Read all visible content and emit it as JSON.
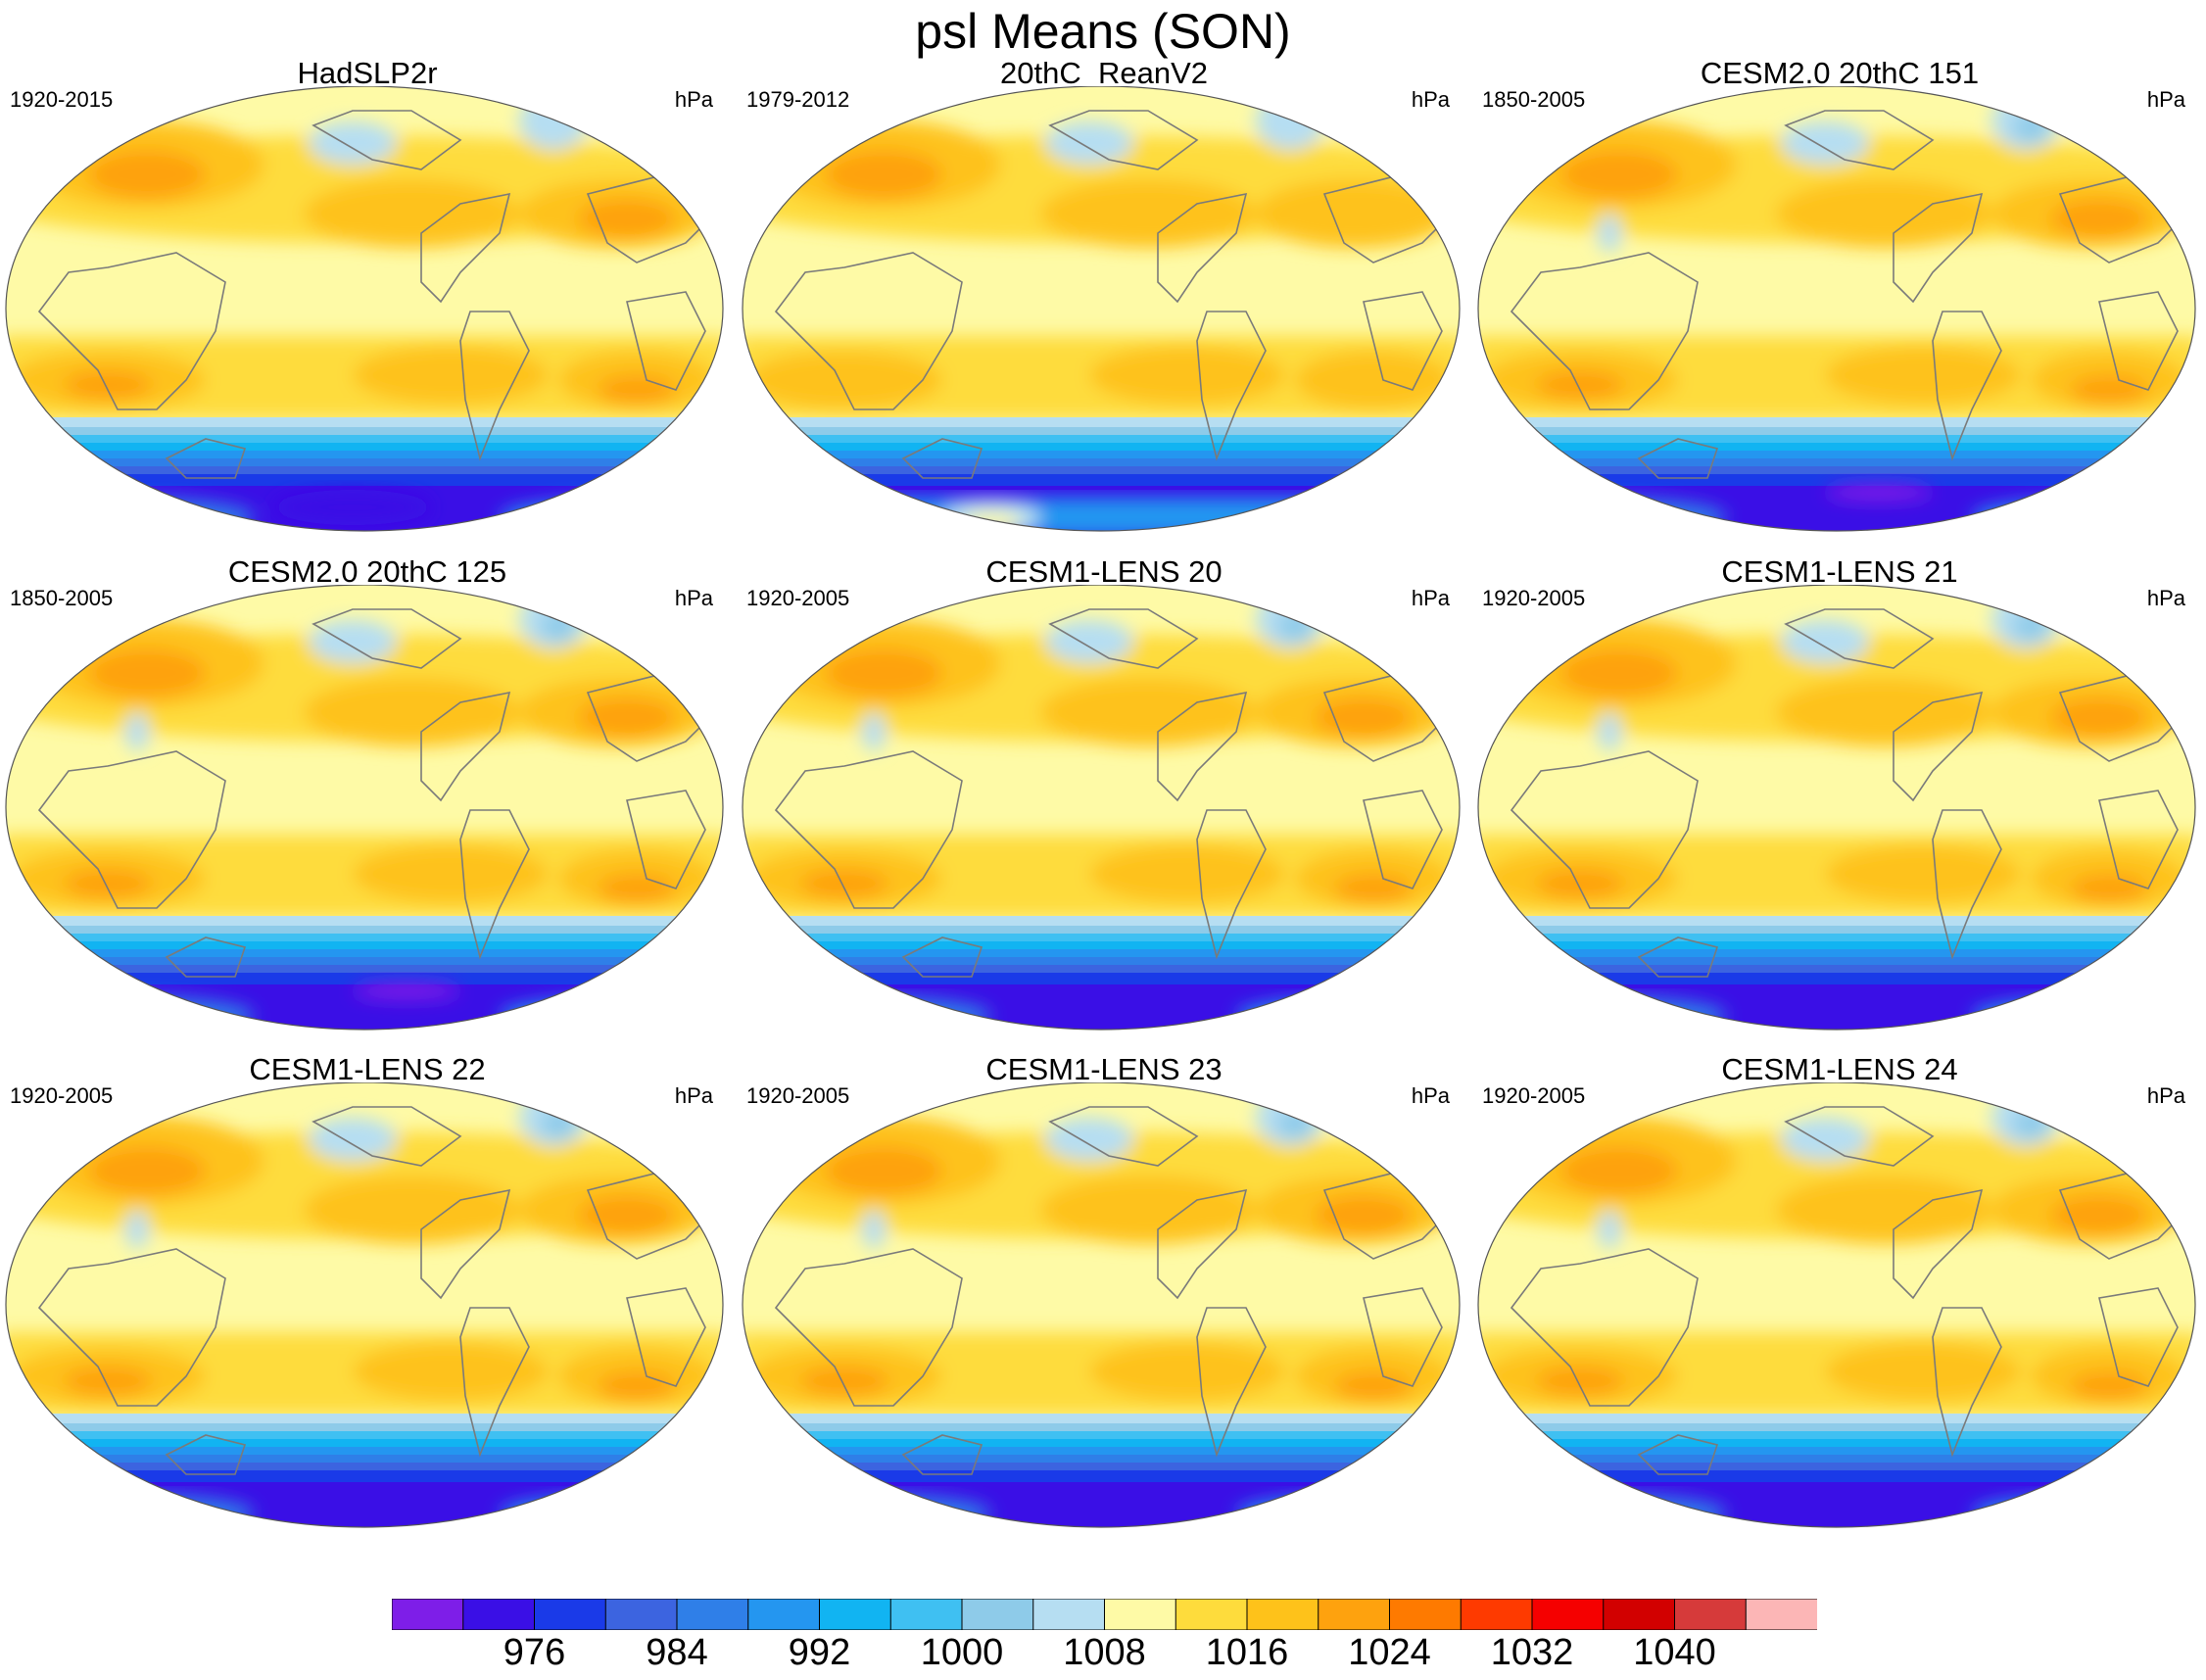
{
  "title": "psl Means (SON)",
  "units": "hPa",
  "panels": [
    {
      "name": "HadSLP2r",
      "period": "1920-2015",
      "variant": "obs"
    },
    {
      "name": "20thC_ReanV2",
      "period": "1979-2012",
      "variant": "rean"
    },
    {
      "name": "CESM2.0 20thC 151",
      "period": "1850-2005",
      "variant": "cesm2"
    },
    {
      "name": "CESM2.0 20thC 125",
      "period": "1850-2005",
      "variant": "cesm2"
    },
    {
      "name": "CESM1-LENS 20",
      "period": "1920-2005",
      "variant": "lens"
    },
    {
      "name": "CESM1-LENS 21",
      "period": "1920-2005",
      "variant": "lens"
    },
    {
      "name": "CESM1-LENS 22",
      "period": "1920-2005",
      "variant": "lens"
    },
    {
      "name": "CESM1-LENS 23",
      "period": "1920-2005",
      "variant": "lens"
    },
    {
      "name": "CESM1-LENS 24",
      "period": "1920-2005",
      "variant": "lens"
    }
  ],
  "colorbar": {
    "colors": [
      "#7e1ee8",
      "#3a0fe6",
      "#1a3ae8",
      "#3c64e0",
      "#2f7fe8",
      "#2496f0",
      "#11b4f2",
      "#3fc0f2",
      "#8ecbe9",
      "#b6def2",
      "#fefaa6",
      "#fedc3c",
      "#fec21a",
      "#fea20e",
      "#fe7a00",
      "#fe3a00",
      "#f50000",
      "#d20000",
      "#d63a3a",
      "#fcb6b6"
    ],
    "labels": [
      "976",
      "984",
      "992",
      "1000",
      "1008",
      "1016",
      "1024",
      "1032",
      "1040"
    ]
  },
  "colors": {
    "coast": "#7a7a7a",
    "frame": "#555555"
  }
}
